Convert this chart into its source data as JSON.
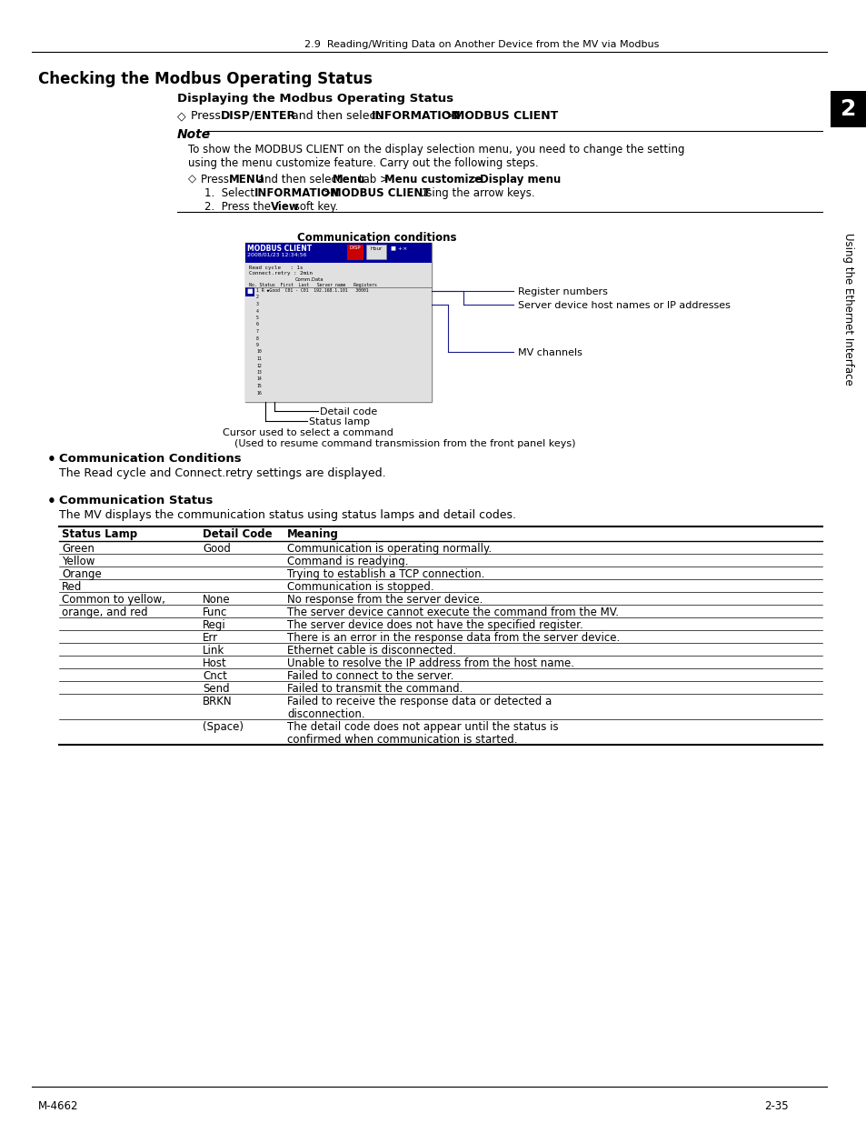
{
  "page_title": "2.9  Reading/Writing Data on Another Device from the MV via Modbus",
  "section_title": "Checking the Modbus Operating Status",
  "subsection_title": "Displaying the Modbus Operating Status",
  "bullet1_title": "Communication Conditions",
  "bullet1_text": "The Read cycle and Connect.retry settings are displayed.",
  "bullet2_title": "Communication Status",
  "bullet2_text": "The MV displays the communication status using status lamps and detail codes.",
  "table_headers": [
    "Status Lamp",
    "Detail Code",
    "Meaning"
  ],
  "table_rows": [
    [
      "Green",
      "Good",
      "Communication is operating normally."
    ],
    [
      "Yellow",
      "",
      "Command is readying."
    ],
    [
      "Orange",
      "",
      "Trying to establish a TCP connection."
    ],
    [
      "Red",
      "",
      "Communication is stopped."
    ],
    [
      "Common to yellow,",
      "None",
      "No response from the server device."
    ],
    [
      "orange, and red",
      "Func",
      "The server device cannot execute the command from the MV."
    ],
    [
      "",
      "Regi",
      "The server device does not have the specified register."
    ],
    [
      "",
      "Err",
      "There is an error in the response data from the server device."
    ],
    [
      "",
      "Link",
      "Ethernet cable is disconnected."
    ],
    [
      "",
      "Host",
      "Unable to resolve the IP address from the host name."
    ],
    [
      "",
      "Cnct",
      "Failed to connect to the server."
    ],
    [
      "",
      "Send",
      "Failed to transmit the command."
    ],
    [
      "",
      "BRKN",
      "Failed to receive the response data or detected a"
    ],
    [
      "",
      "",
      "disconnection."
    ],
    [
      "",
      "(Space)",
      "The detail code does not appear until the status is"
    ],
    [
      "",
      "",
      "confirmed when communication is started."
    ]
  ],
  "footer_left": "M-4662",
  "footer_right": "2-35",
  "sidebar_text": "Using the Ethernet Interface",
  "sidebar_number": "2",
  "bg_color": "#ffffff",
  "sidebar_bg": "#000000",
  "sidebar_fg": "#ffffff",
  "line_color": "#000000",
  "ann_line_color": "#1a1a8c"
}
